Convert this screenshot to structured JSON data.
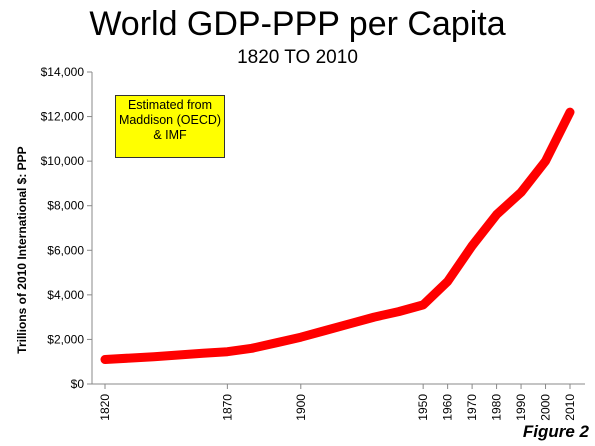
{
  "chart_data": {
    "type": "line",
    "title": "World GDP-PPP per Capita",
    "subtitle": "1820 TO 2010",
    "ylabel": "Trillions of 2010 International $: PPP",
    "xlabel": "",
    "x": [
      1820,
      1830,
      1840,
      1850,
      1860,
      1870,
      1880,
      1890,
      1900,
      1910,
      1920,
      1930,
      1940,
      1950,
      1960,
      1970,
      1980,
      1990,
      2000,
      2010
    ],
    "series": [
      {
        "values": [
          1100,
          1160,
          1220,
          1300,
          1380,
          1450,
          1600,
          1850,
          2100,
          2400,
          2700,
          3000,
          3250,
          3550,
          4600,
          6200,
          7600,
          8600,
          10000,
          12200
        ]
      }
    ],
    "x_tick_values": [
      1820,
      1870,
      1900,
      1950,
      1960,
      1970,
      1980,
      1990,
      2000,
      2010
    ],
    "x_tick_labels": [
      "1820",
      "1870",
      "1900",
      "1950",
      "1960",
      "1970",
      "1980",
      "1990",
      "2000",
      "2010"
    ],
    "y_tick_values": [
      0,
      2000,
      4000,
      6000,
      8000,
      10000,
      12000,
      14000
    ],
    "y_tick_labels": [
      "$0",
      "$2,000",
      "$4,000",
      "$6,000",
      "$8,000",
      "$10,000",
      "$12,000",
      "$14,000"
    ],
    "ylim": [
      0,
      14000
    ],
    "xlim": [
      1820,
      2010
    ],
    "grid": false,
    "line_color": "#ff0000",
    "annotation": [
      "Estimated from",
      "Maddison (OECD)",
      "& IMF"
    ],
    "figure_label": "Figure 2"
  }
}
